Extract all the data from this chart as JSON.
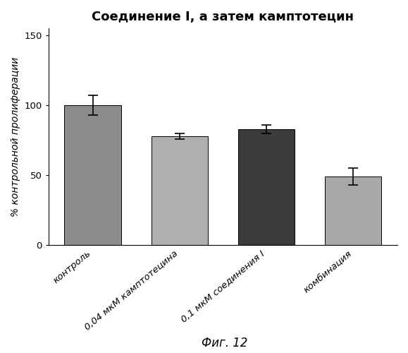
{
  "title": "Соединение I, а затем камптотецин",
  "ylabel": "% контрольной пролиферации",
  "figcaption": "Фиг. 12",
  "categories": [
    "контроль",
    "0,04 мкМ камптотецина",
    "0,1 мкМ соединения I",
    "комбинация"
  ],
  "values": [
    100,
    78,
    83,
    49
  ],
  "errors": [
    7,
    2,
    3,
    6
  ],
  "bar_colors": [
    "#8c8c8c",
    "#b0b0b0",
    "#3c3c3c",
    "#a8a8a8"
  ],
  "hatch_patterns": [
    "/////",
    "/////",
    "/////",
    "/////"
  ],
  "ylim": [
    0,
    155
  ],
  "yticks": [
    0,
    50,
    100,
    150
  ],
  "title_fontsize": 13,
  "label_fontsize": 10,
  "tick_fontsize": 9.5,
  "caption_fontsize": 12,
  "background_color": "#ffffff",
  "bar_width": 0.65,
  "edge_color": "#000000"
}
